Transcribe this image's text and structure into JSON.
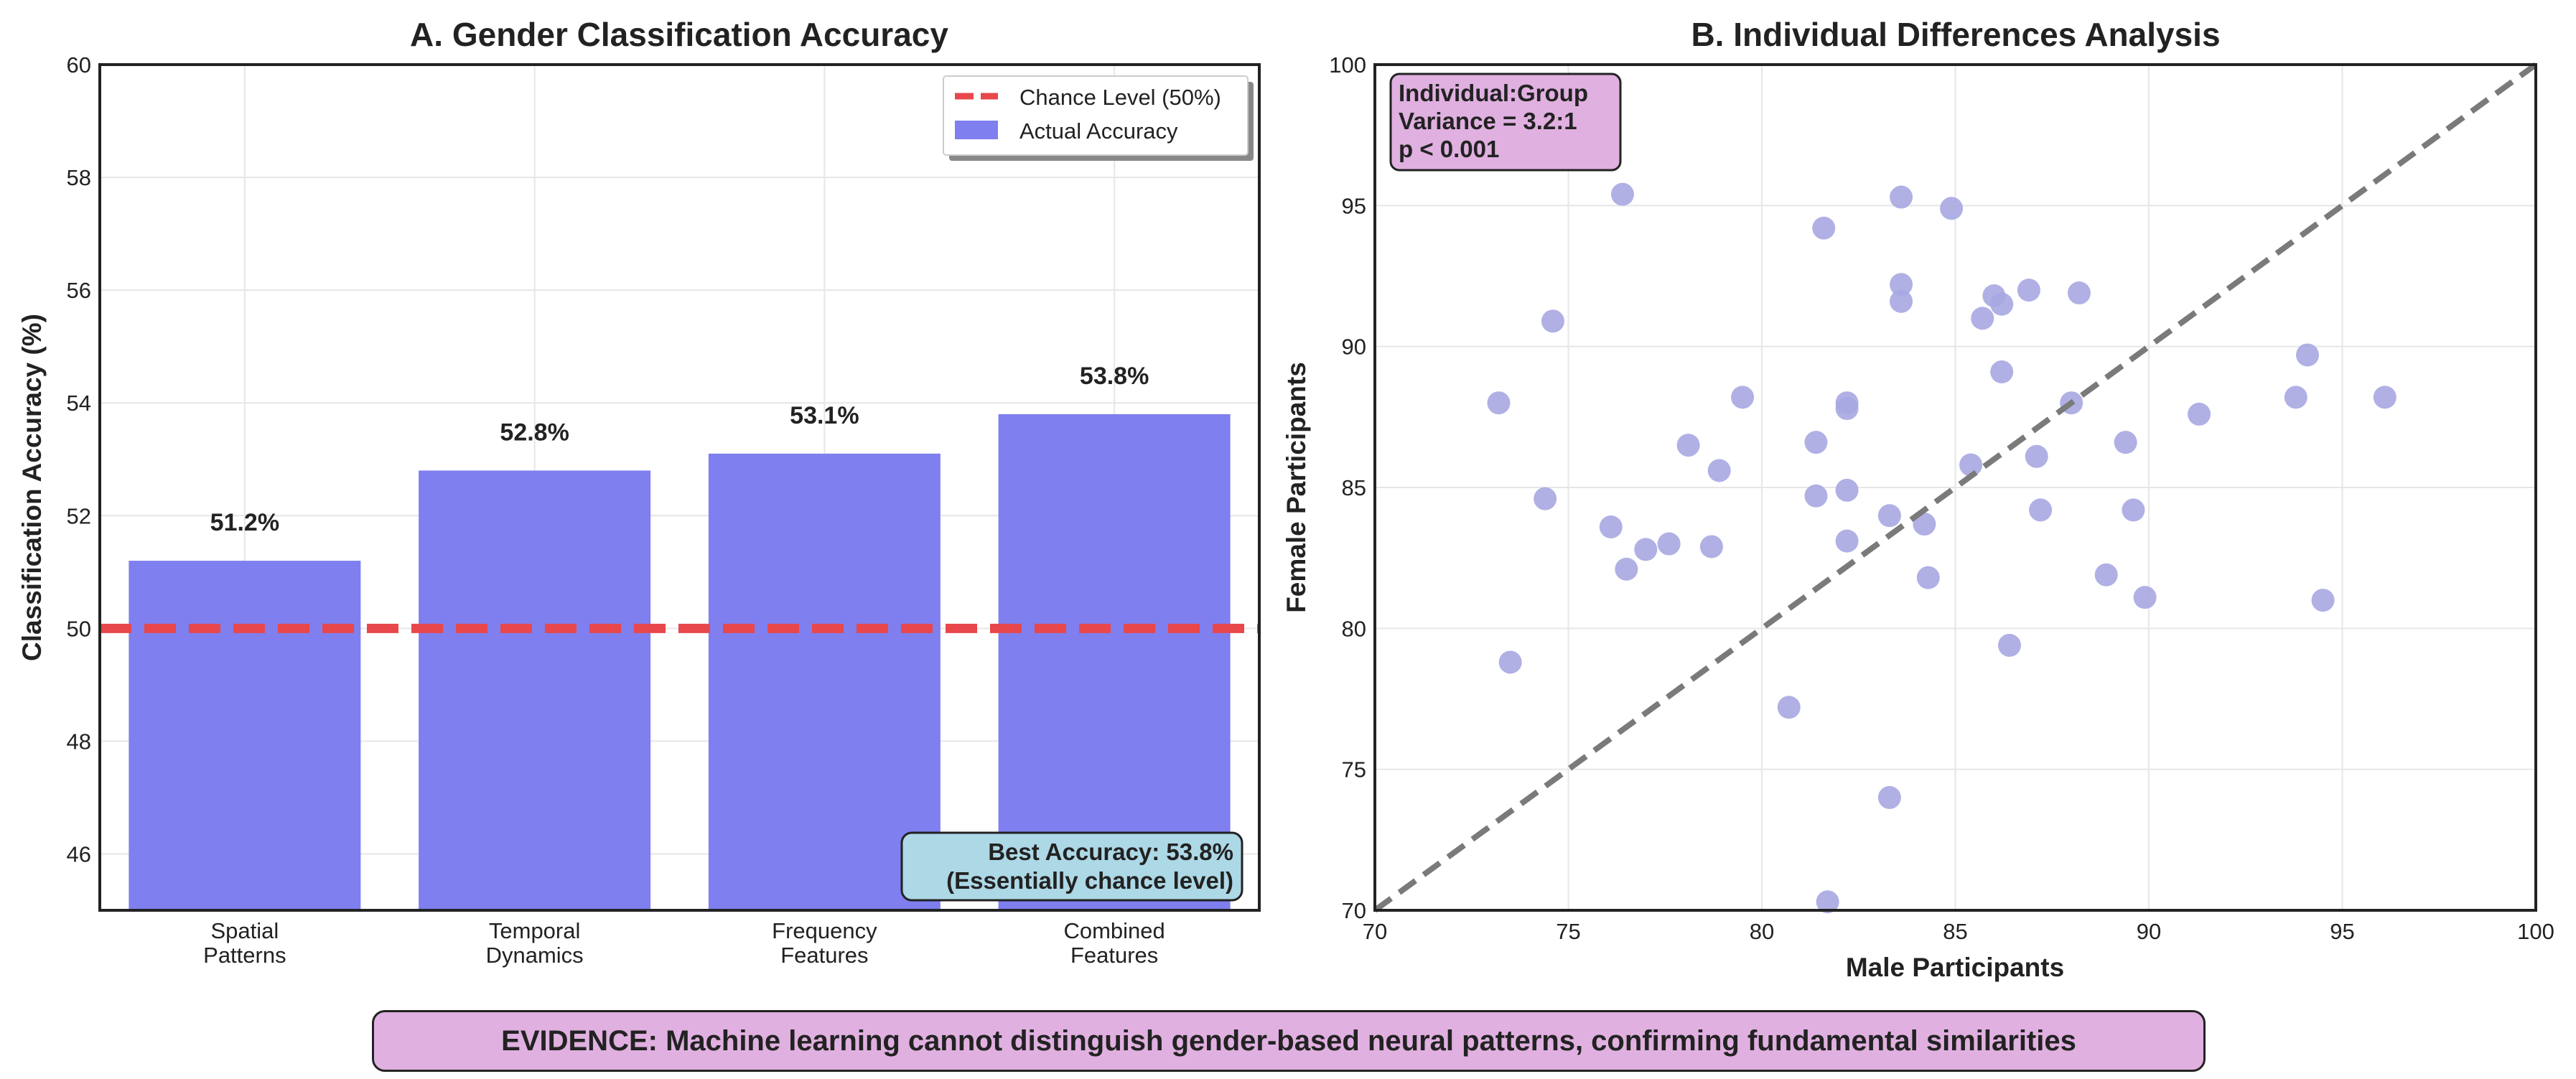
{
  "colors": {
    "bar": "#7f7fef",
    "chance_line": "#e8474b",
    "scatter": "#a7a7e2",
    "diagonal": "#7a7a7a",
    "accuracy_box": "#add8e6",
    "stats_box": "#e0b0e0",
    "evidence_box": "#e0b0e0"
  },
  "chart_data": [
    {
      "type": "bar",
      "title": "A. Gender Classification Accuracy",
      "xlabel": "",
      "ylabel": "Classification Accuracy (%)",
      "ylim": [
        45,
        60
      ],
      "yticks": [
        "46",
        "48",
        "50",
        "52",
        "54",
        "56",
        "58",
        "60"
      ],
      "categories": [
        [
          "Spatial",
          "Patterns"
        ],
        [
          "Temporal",
          "Dynamics"
        ],
        [
          "Frequency",
          "Features"
        ],
        [
          "Combined",
          "Features"
        ]
      ],
      "values": [
        51.2,
        52.8,
        53.1,
        53.8
      ],
      "value_labels": [
        "51.2%",
        "52.8%",
        "53.1%",
        "53.8%"
      ],
      "reference_line": {
        "y": 50,
        "label": "Chance Level (50%)"
      },
      "series": [
        {
          "name": "Actual Accuracy",
          "values": [
            51.2,
            52.8,
            53.1,
            53.8
          ]
        }
      ],
      "legend": {
        "position": "top-right",
        "entries": [
          "Chance Level (50%)",
          "Actual Accuracy"
        ]
      },
      "annotation": [
        "Best Accuracy: 53.8%",
        "(Essentially chance level)"
      ],
      "grid": true
    },
    {
      "type": "scatter",
      "title": "B. Individual Differences Analysis",
      "xlabel": "Male Participants",
      "ylabel": "Female Participants",
      "xlim": [
        70,
        100
      ],
      "ylim": [
        70,
        100
      ],
      "xticks": [
        "70",
        "75",
        "80",
        "85",
        "90",
        "95",
        "100"
      ],
      "yticks": [
        "70",
        "75",
        "80",
        "85",
        "90",
        "95",
        "100"
      ],
      "reference_line": {
        "type": "diagonal",
        "from": [
          70,
          70
        ],
        "to": [
          100,
          100
        ]
      },
      "annotation": [
        "Individual:Group",
        "Variance = 3.2:1",
        "p < 0.001"
      ],
      "grid": true,
      "points": [
        [
          73.2,
          88.0
        ],
        [
          73.5,
          78.8
        ],
        [
          74.4,
          84.6
        ],
        [
          74.6,
          90.9
        ],
        [
          76.1,
          83.6
        ],
        [
          76.4,
          95.4
        ],
        [
          76.5,
          82.1
        ],
        [
          77.0,
          82.8
        ],
        [
          77.6,
          83.0
        ],
        [
          78.1,
          86.5
        ],
        [
          78.7,
          82.9
        ],
        [
          78.9,
          85.6
        ],
        [
          79.5,
          88.2
        ],
        [
          80.7,
          77.2
        ],
        [
          81.4,
          86.6
        ],
        [
          81.4,
          84.7
        ],
        [
          81.6,
          94.2
        ],
        [
          81.7,
          70.3
        ],
        [
          82.2,
          88.0
        ],
        [
          82.2,
          87.8
        ],
        [
          82.2,
          84.9
        ],
        [
          82.2,
          83.1
        ],
        [
          83.3,
          84.0
        ],
        [
          83.3,
          74.0
        ],
        [
          83.6,
          95.3
        ],
        [
          83.6,
          92.2
        ],
        [
          83.6,
          91.6
        ],
        [
          84.2,
          83.7
        ],
        [
          84.3,
          81.8
        ],
        [
          84.9,
          94.9
        ],
        [
          85.4,
          85.8
        ],
        [
          85.7,
          91.0
        ],
        [
          86.0,
          91.8
        ],
        [
          86.2,
          91.5
        ],
        [
          86.2,
          89.1
        ],
        [
          86.4,
          79.4
        ],
        [
          86.9,
          92.0
        ],
        [
          87.1,
          86.1
        ],
        [
          87.2,
          84.2
        ],
        [
          88.0,
          88.0
        ],
        [
          88.2,
          91.9
        ],
        [
          88.9,
          81.9
        ],
        [
          89.4,
          86.6
        ],
        [
          89.6,
          84.2
        ],
        [
          89.9,
          81.1
        ],
        [
          91.3,
          87.6
        ],
        [
          93.8,
          88.2
        ],
        [
          94.1,
          89.7
        ],
        [
          94.5,
          81.0
        ],
        [
          96.1,
          88.2
        ]
      ]
    }
  ],
  "footer": {
    "evidence_text": "EVIDENCE: Machine learning cannot distinguish gender-based neural patterns, confirming fundamental similarities"
  }
}
